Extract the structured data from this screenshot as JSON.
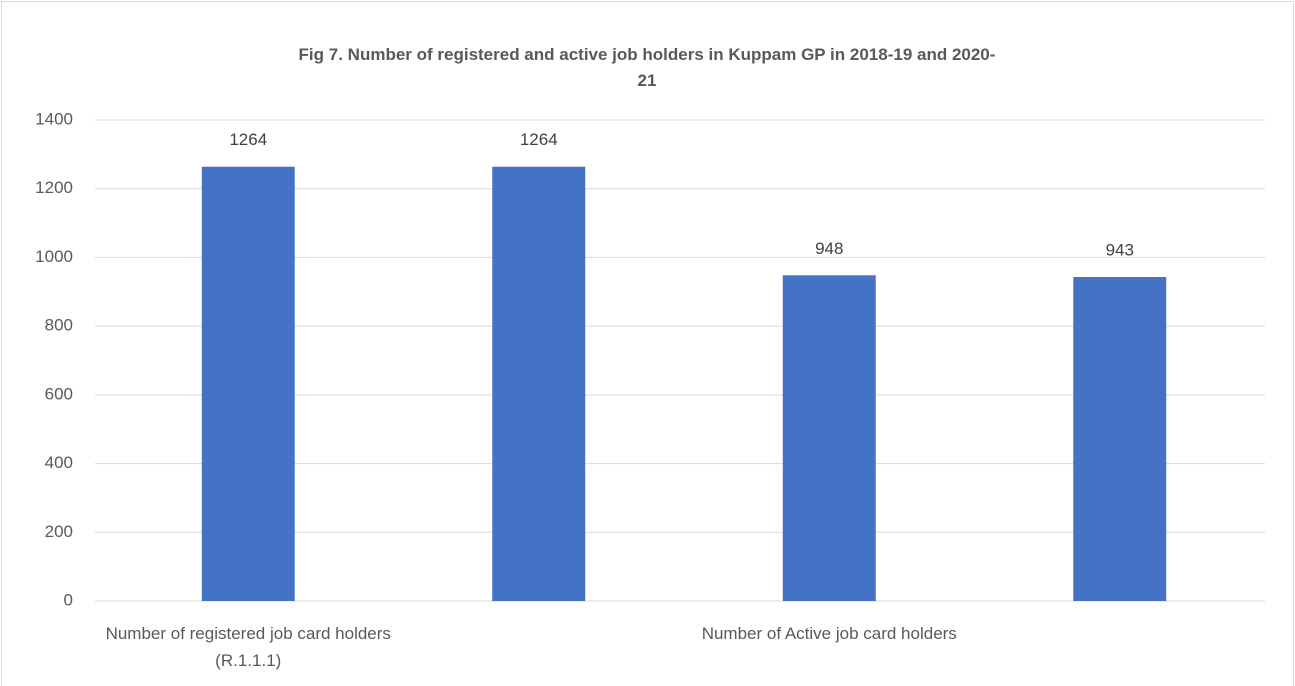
{
  "chart_data": {
    "type": "bar",
    "title": "Fig 7. Number of registered and active job holders in Kuppam GP in 2018-19 and 2020-21",
    "categories": [
      "Number of registered job card holders (R.1.1.1)",
      null,
      "Number of Active job card holders",
      null
    ],
    "values": [
      1264,
      1264,
      948,
      943
    ],
    "color": "#4472c4",
    "ylim": [
      0,
      1400
    ],
    "yticks": [
      0,
      200,
      400,
      600,
      800,
      1000,
      1200,
      1400
    ],
    "grid": true
  }
}
